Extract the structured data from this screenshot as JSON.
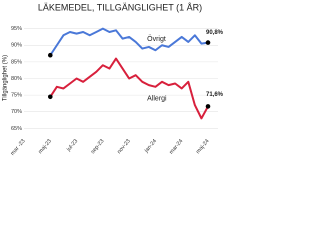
{
  "chart_data": {
    "type": "line",
    "title": "LÄKEMEDEL, TILLGÄNGLIGHET (1 ÅR)",
    "y_label": "Tillgänglighet (%)",
    "categories": [
      "mar -23",
      null,
      null,
      null,
      "maj-23",
      null,
      null,
      null,
      "jul-23",
      null,
      null,
      null,
      "sep-23",
      null,
      null,
      null,
      "nov-23",
      null,
      null,
      null,
      "jan-24",
      null,
      null,
      null,
      "mar-24",
      null,
      null,
      null,
      "maj-24"
    ],
    "series": [
      {
        "name": "Övrigt",
        "color": "#4a78d8",
        "values": [
          null,
          null,
          null,
          null,
          87,
          90,
          93,
          94,
          93.5,
          94,
          93,
          94,
          95,
          94,
          94.5,
          92,
          92.5,
          91,
          89,
          89.5,
          88.5,
          90,
          89.5,
          91,
          92.5,
          91,
          93,
          90.5,
          90.8
        ],
        "value_labels": [
          null,
          null,
          null,
          null,
          null,
          null,
          null,
          null,
          null,
          null,
          null,
          null,
          null,
          null,
          null,
          null,
          null,
          null,
          null,
          null,
          null,
          null,
          null,
          null,
          null,
          null,
          null,
          null,
          "90,8%"
        ]
      },
      {
        "name": "Allergi",
        "color": "#d8203c",
        "values": [
          null,
          null,
          null,
          null,
          74.5,
          77.5,
          77,
          78.5,
          80,
          79,
          80.5,
          82,
          84,
          83,
          86,
          83,
          80,
          81,
          79,
          78,
          77.5,
          79,
          78,
          78.5,
          77,
          79,
          72,
          68,
          71.6
        ],
        "value_labels": [
          null,
          null,
          null,
          null,
          null,
          null,
          null,
          null,
          null,
          null,
          null,
          null,
          null,
          null,
          null,
          null,
          null,
          null,
          null,
          null,
          null,
          null,
          null,
          null,
          null,
          null,
          null,
          null,
          "71,6%"
        ]
      }
    ],
    "ylim": [
      63,
      97
    ],
    "yticks": [
      {
        "value": 65,
        "label": "65%"
      },
      {
        "value": 70,
        "label": "70%"
      },
      {
        "value": 75,
        "label": "75%"
      },
      {
        "value": 80,
        "label": "80%"
      },
      {
        "value": 85,
        "label": "85%"
      },
      {
        "value": 90,
        "label": "90%"
      },
      {
        "value": 95,
        "label": "95%"
      }
    ],
    "grid": true
  }
}
